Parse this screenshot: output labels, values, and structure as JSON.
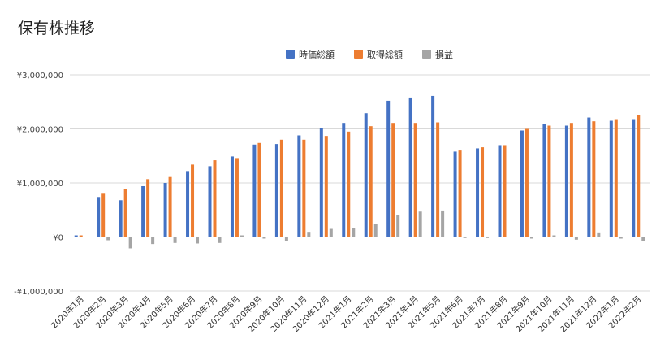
{
  "chart_data": {
    "type": "bar",
    "title": "保有株推移",
    "categories": [
      "2020年1月",
      "2020年2月",
      "2020年3月",
      "2020年4月",
      "2020年5月",
      "2020年6月",
      "2020年7月",
      "2020年8月",
      "2020年9月",
      "2020年10月",
      "2020年11月",
      "2020年12月",
      "2021年1月",
      "2021年2月",
      "2021年3月",
      "2021年4月",
      "2021年5月",
      "2021年6月",
      "2021年7月",
      "2021年8月",
      "2021年9月",
      "2021年10月",
      "2021年11月",
      "2021年12月",
      "2022年1月",
      "2022年2月"
    ],
    "series": [
      {
        "name": "時価総額",
        "color": "#4472C4",
        "values": [
          30000,
          740000,
          680000,
          940000,
          1000000,
          1220000,
          1310000,
          1490000,
          1710000,
          1720000,
          1880000,
          2020000,
          2110000,
          2290000,
          2520000,
          2580000,
          2610000,
          1580000,
          1640000,
          1700000,
          1970000,
          2090000,
          2060000,
          2210000,
          2150000,
          2180000
        ]
      },
      {
        "name": "取得総額",
        "color": "#ED7D31",
        "values": [
          30000,
          800000,
          890000,
          1070000,
          1110000,
          1340000,
          1420000,
          1460000,
          1740000,
          1800000,
          1800000,
          1870000,
          1950000,
          2050000,
          2110000,
          2110000,
          2120000,
          1600000,
          1660000,
          1700000,
          2000000,
          2060000,
          2110000,
          2140000,
          2180000,
          2260000
        ]
      },
      {
        "name": "損益",
        "color": "#A5A5A5",
        "values": [
          0,
          -60000,
          -210000,
          -130000,
          -110000,
          -120000,
          -110000,
          30000,
          -30000,
          -80000,
          80000,
          150000,
          160000,
          240000,
          410000,
          470000,
          490000,
          -20000,
          -20000,
          0,
          -30000,
          30000,
          -50000,
          70000,
          -30000,
          -80000
        ]
      }
    ],
    "ylim": [
      -1000000,
      3000000
    ],
    "yticks": [
      3000000,
      2000000,
      1000000,
      0,
      -1000000
    ],
    "ytick_labels": [
      "¥3,000,000",
      "¥2,000,000",
      "¥1,000,000",
      "¥0",
      "-¥1,000,000"
    ],
    "grid": true,
    "legend_position": "top-center",
    "xlabel": "",
    "ylabel": ""
  }
}
